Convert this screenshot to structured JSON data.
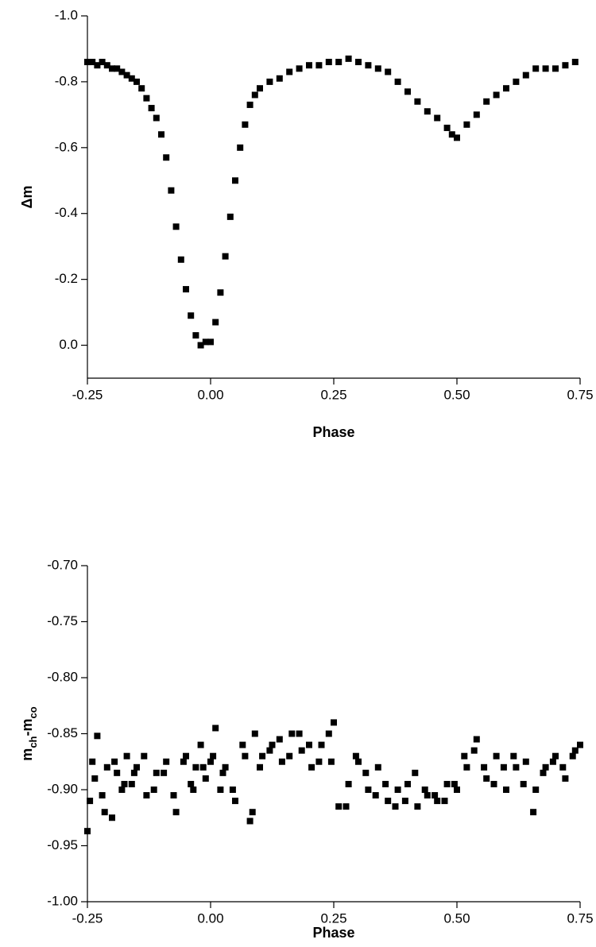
{
  "chart_data": [
    {
      "type": "scatter",
      "xlabel": "Phase",
      "ylabel": [
        {
          "text": "Δm",
          "sub": false
        }
      ],
      "color": "#000000",
      "x": [
        -0.25,
        -0.24,
        -0.23,
        -0.22,
        -0.21,
        -0.2,
        -0.19,
        -0.18,
        -0.17,
        -0.16,
        -0.15,
        -0.14,
        -0.13,
        -0.12,
        -0.11,
        -0.1,
        -0.09,
        -0.08,
        -0.07,
        -0.06,
        -0.05,
        -0.04,
        -0.03,
        -0.02,
        -0.01,
        0.0,
        0.01,
        0.02,
        0.03,
        0.04,
        0.05,
        0.06,
        0.07,
        0.08,
        0.09,
        0.1,
        0.12,
        0.14,
        0.16,
        0.18,
        0.2,
        0.22,
        0.24,
        0.26,
        0.28,
        0.3,
        0.32,
        0.34,
        0.36,
        0.38,
        0.4,
        0.42,
        0.44,
        0.46,
        0.48,
        0.49,
        0.5,
        0.52,
        0.54,
        0.56,
        0.58,
        0.6,
        0.62,
        0.64,
        0.66,
        0.68,
        0.7,
        0.72,
        0.74
      ],
      "values": [
        -0.86,
        -0.86,
        -0.85,
        -0.86,
        -0.85,
        -0.84,
        -0.84,
        -0.83,
        -0.82,
        -0.81,
        -0.8,
        -0.78,
        -0.75,
        -0.72,
        -0.69,
        -0.64,
        -0.57,
        -0.47,
        -0.36,
        -0.26,
        -0.17,
        -0.09,
        -0.03,
        0.0,
        -0.01,
        -0.01,
        -0.07,
        -0.16,
        -0.27,
        -0.39,
        -0.5,
        -0.6,
        -0.67,
        -0.73,
        -0.76,
        -0.78,
        -0.8,
        -0.81,
        -0.83,
        -0.84,
        -0.85,
        -0.85,
        -0.86,
        -0.86,
        -0.87,
        -0.86,
        -0.85,
        -0.84,
        -0.83,
        -0.8,
        -0.77,
        -0.74,
        -0.71,
        -0.69,
        -0.66,
        -0.64,
        -0.63,
        -0.67,
        -0.7,
        -0.74,
        -0.76,
        -0.78,
        -0.8,
        -0.82,
        -0.84,
        -0.84,
        -0.84,
        -0.85,
        -0.86
      ],
      "xlim": [
        -0.25,
        0.75
      ],
      "ylim": [
        0.1,
        -1.0
      ],
      "xticks": [
        -0.25,
        {
          "value": 0,
          "label": "0.00"
        },
        0.25,
        {
          "value": 0.5,
          "label": "0.50"
        },
        0.75
      ],
      "yticks": [
        {
          "value": -1.0,
          "label": "-1.0"
        },
        -0.8,
        -0.6,
        -0.4,
        -0.2,
        {
          "value": 0,
          "label": "0.0"
        }
      ]
    },
    {
      "type": "scatter",
      "xlabel": "Phase",
      "ylabel": [
        {
          "text": "m",
          "sub": false
        },
        {
          "text": "ch",
          "sub": true
        },
        {
          "text": "-m",
          "sub": false
        },
        {
          "text": "co",
          "sub": true
        }
      ],
      "color": "#000000",
      "x": [
        -0.25,
        -0.24,
        -0.23,
        -0.22,
        -0.21,
        -0.2,
        -0.19,
        -0.18,
        -0.17,
        -0.16,
        -0.15,
        -0.13,
        -0.11,
        -0.09,
        -0.07,
        -0.05,
        -0.04,
        -0.03,
        -0.02,
        -0.01,
        0.0,
        0.01,
        0.02,
        0.03,
        0.05,
        0.07,
        0.08,
        0.09,
        0.1,
        0.12,
        0.14,
        0.16,
        0.18,
        0.2,
        0.22,
        0.24,
        0.25,
        0.26,
        0.28,
        0.3,
        0.32,
        0.34,
        0.36,
        0.38,
        0.4,
        0.42,
        0.44,
        0.46,
        0.48,
        0.5,
        0.52,
        0.54,
        0.56,
        0.58,
        0.6,
        0.62,
        0.64,
        0.66,
        0.68,
        0.7,
        0.72,
        0.74,
        0.75,
        -0.245,
        -0.235,
        -0.215,
        -0.195,
        -0.175,
        -0.155,
        -0.135,
        -0.115,
        -0.095,
        -0.075,
        -0.055,
        -0.035,
        -0.015,
        0.005,
        0.025,
        0.045,
        0.065,
        0.085,
        0.105,
        0.125,
        0.145,
        0.165,
        0.185,
        0.205,
        0.225,
        0.245,
        0.275,
        0.295,
        0.315,
        0.335,
        0.355,
        0.375,
        0.395,
        0.415,
        0.435,
        0.455,
        0.475,
        0.495,
        0.515,
        0.535,
        0.555,
        0.575,
        0.595,
        0.615,
        0.635,
        0.655,
        0.675,
        0.695,
        0.715,
        0.735
      ],
      "values": [
        -0.937,
        -0.875,
        -0.852,
        -0.905,
        -0.88,
        -0.925,
        -0.885,
        -0.9,
        -0.87,
        -0.895,
        -0.88,
        -0.905,
        -0.885,
        -0.875,
        -0.92,
        -0.87,
        -0.895,
        -0.88,
        -0.86,
        -0.89,
        -0.875,
        -0.845,
        -0.9,
        -0.88,
        -0.91,
        -0.87,
        -0.928,
        -0.85,
        -0.88,
        -0.865,
        -0.855,
        -0.87,
        -0.85,
        -0.86,
        -0.875,
        -0.85,
        -0.84,
        -0.915,
        -0.895,
        -0.875,
        -0.9,
        -0.88,
        -0.91,
        -0.9,
        -0.895,
        -0.915,
        -0.905,
        -0.91,
        -0.895,
        -0.9,
        -0.88,
        -0.855,
        -0.89,
        -0.87,
        -0.9,
        -0.88,
        -0.875,
        -0.9,
        -0.88,
        -0.87,
        -0.89,
        -0.865,
        -0.86,
        -0.91,
        -0.89,
        -0.92,
        -0.875,
        -0.895,
        -0.885,
        -0.87,
        -0.9,
        -0.885,
        -0.905,
        -0.875,
        -0.9,
        -0.88,
        -0.87,
        -0.885,
        -0.9,
        -0.86,
        -0.92,
        -0.87,
        -0.86,
        -0.875,
        -0.85,
        -0.865,
        -0.88,
        -0.86,
        -0.875,
        -0.915,
        -0.87,
        -0.885,
        -0.905,
        -0.895,
        -0.915,
        -0.91,
        -0.885,
        -0.9,
        -0.905,
        -0.91,
        -0.895,
        -0.87,
        -0.865,
        -0.88,
        -0.895,
        -0.88,
        -0.87,
        -0.895,
        -0.92,
        -0.885,
        -0.875,
        -0.88,
        -0.87
      ],
      "xlim": [
        -0.25,
        0.75
      ],
      "ylim": [
        -1.0,
        -0.7
      ],
      "xticks": [
        -0.25,
        {
          "value": 0,
          "label": "0.00"
        },
        0.25,
        {
          "value": 0.5,
          "label": "0.50"
        },
        0.75
      ],
      "yticks": [
        {
          "value": -1.0,
          "label": "-1.00"
        },
        -0.95,
        {
          "value": -0.9,
          "label": "-0.90"
        },
        -0.85,
        {
          "value": -0.8,
          "label": "-0.80"
        },
        -0.75,
        {
          "value": -0.7,
          "label": "-0.70"
        }
      ]
    }
  ]
}
